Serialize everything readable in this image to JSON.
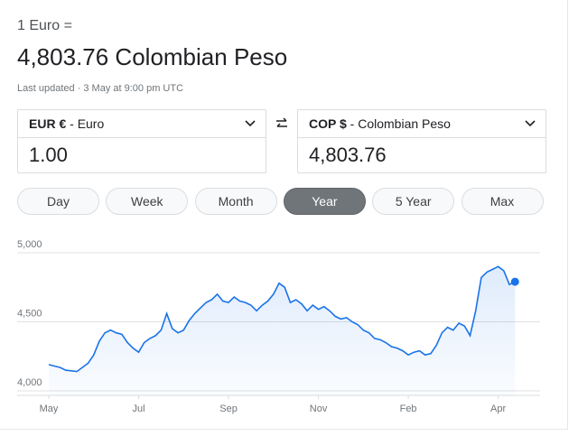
{
  "header": {
    "label": "1 Euro =",
    "value": "4,803.76 Colombian Peso",
    "updated": "Last updated · 3 May at 9:00 pm UTC"
  },
  "from": {
    "code": "EUR €",
    "name": "Euro",
    "amount": "1.00"
  },
  "to": {
    "code": "COP $",
    "name": "Colombian Peso",
    "amount": "4,803.76"
  },
  "ranges": {
    "options": [
      "Day",
      "Week",
      "Month",
      "Year",
      "5 Year",
      "Max"
    ],
    "active": 3
  },
  "chart_data": {
    "type": "line",
    "color": "#1a73e8",
    "categories": [
      "May",
      null,
      null,
      null,
      null,
      null,
      null,
      null,
      null,
      null,
      null,
      null,
      null,
      null,
      null,
      null,
      "Jul",
      null,
      null,
      null,
      null,
      null,
      null,
      null,
      null,
      null,
      null,
      null,
      null,
      null,
      null,
      null,
      "Sep",
      null,
      null,
      null,
      null,
      null,
      null,
      null,
      null,
      null,
      null,
      null,
      null,
      null,
      null,
      null,
      "Nov",
      null,
      null,
      null,
      null,
      null,
      null,
      null,
      null,
      null,
      null,
      null,
      null,
      null,
      null,
      null,
      "Feb",
      null,
      null,
      null,
      null,
      null,
      null,
      null,
      null,
      null,
      null,
      null,
      null,
      null,
      null,
      null,
      "Apr",
      null,
      null,
      null
    ],
    "values": [
      4190,
      4180,
      4170,
      4150,
      4145,
      4140,
      4170,
      4200,
      4260,
      4360,
      4420,
      4440,
      4420,
      4410,
      4350,
      4310,
      4280,
      4350,
      4380,
      4400,
      4440,
      4560,
      4450,
      4420,
      4440,
      4510,
      4560,
      4600,
      4640,
      4660,
      4700,
      4650,
      4640,
      4680,
      4650,
      4640,
      4620,
      4580,
      4620,
      4650,
      4700,
      4780,
      4750,
      4640,
      4660,
      4630,
      4580,
      4620,
      4590,
      4610,
      4580,
      4540,
      4520,
      4530,
      4500,
      4480,
      4440,
      4420,
      4380,
      4370,
      4350,
      4320,
      4310,
      4290,
      4260,
      4280,
      4290,
      4260,
      4270,
      4330,
      4420,
      4460,
      4440,
      4490,
      4470,
      4400,
      4580,
      4820,
      4860,
      4880,
      4900,
      4870,
      4770,
      4790
    ],
    "ylim": [
      4000,
      5000
    ],
    "yticks": [
      {
        "value": 4000,
        "label": "4,000"
      },
      {
        "value": 4500,
        "label": "4,500"
      },
      {
        "value": 5000,
        "label": "5,000"
      }
    ],
    "grid": true
  }
}
